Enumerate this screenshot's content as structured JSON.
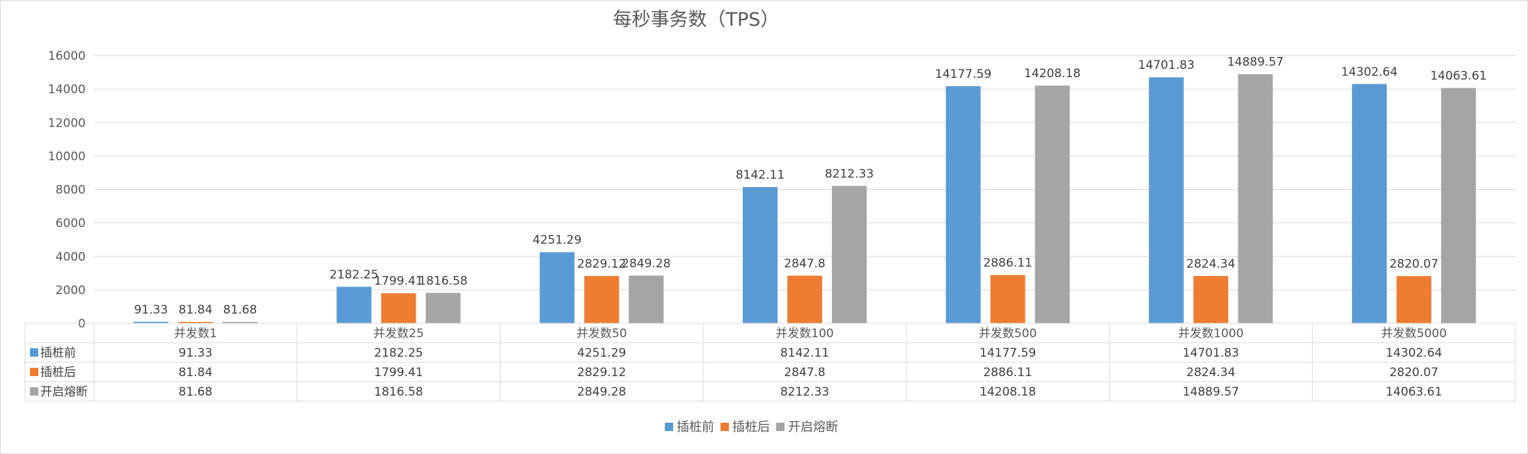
{
  "chart_data": {
    "type": "bar",
    "title": "每秒事务数（TPS）",
    "categories": [
      "并发数1",
      "并发数25",
      "并发数50",
      "并发数100",
      "并发数500",
      "并发数1000",
      "并发数5000"
    ],
    "series": [
      {
        "name": "插桩前",
        "color": "#5b9bd5",
        "values": [
          91.33,
          2182.25,
          4251.29,
          8142.11,
          14177.59,
          14701.83,
          14302.64
        ],
        "labels": [
          "91.33",
          "2182.25",
          "4251.29",
          "8142.11",
          "14177.59",
          "14701.83",
          "14302.64"
        ]
      },
      {
        "name": "插桩后",
        "color": "#ed7d31",
        "values": [
          81.84,
          1799.41,
          2829.12,
          2847.8,
          2886.11,
          2824.34,
          2820.07
        ],
        "labels": [
          "81.84",
          "1799.41",
          "2829.12",
          "2847.8",
          "2886.11",
          "2824.34",
          "2820.07"
        ]
      },
      {
        "name": "开启熔断",
        "color": "#a5a5a5",
        "values": [
          81.68,
          1816.58,
          2849.28,
          8212.33,
          14208.18,
          14889.57,
          14063.61
        ],
        "labels": [
          "81.68",
          "1816.58",
          "2849.28",
          "8212.33",
          "14208.18",
          "14889.57",
          "14063.61"
        ]
      }
    ],
    "yticks": [
      "0",
      "2000",
      "4000",
      "6000",
      "8000",
      "10000",
      "12000",
      "14000",
      "16000"
    ],
    "ylim": [
      0,
      16000
    ],
    "grid": true,
    "legend_position": "bottom",
    "data_table": true
  }
}
